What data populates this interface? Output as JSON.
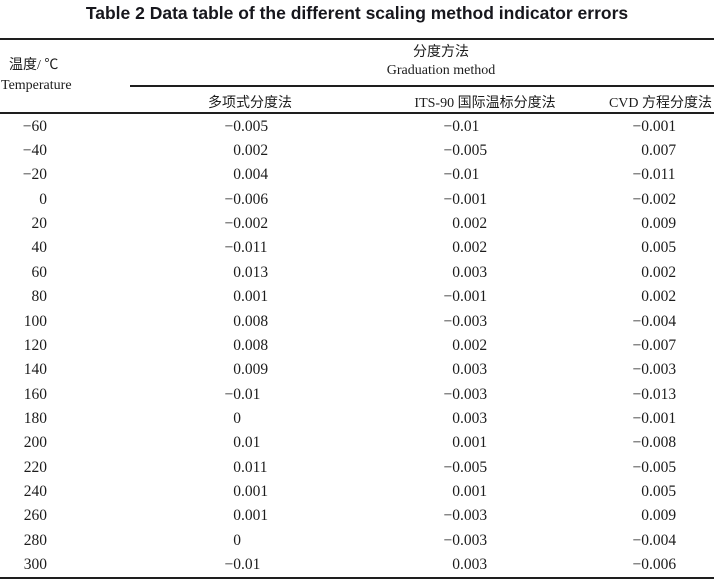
{
  "title": "Table 2 Data table of the different scaling method indicator errors",
  "table": {
    "col1_header": {
      "zh": "温度/ ℃",
      "en": "Temperature"
    },
    "group_header": {
      "zh": "分度方法",
      "en": "Graduation method"
    },
    "method_headers": {
      "poly": "多项式分度法",
      "its90": "ITS-90 国际温标分度法",
      "cvd": "CVD 方程分度法"
    },
    "rows": [
      {
        "temp": "−60",
        "poly": "−0.005",
        "its90": "−0.01",
        "cvd": "−0.001"
      },
      {
        "temp": "−40",
        "poly": "0.002",
        "its90": "−0.005",
        "cvd": "0.007"
      },
      {
        "temp": "−20",
        "poly": "0.004",
        "its90": "−0.01",
        "cvd": "−0.011"
      },
      {
        "temp": "0",
        "poly": "−0.006",
        "its90": "−0.001",
        "cvd": "−0.002"
      },
      {
        "temp": "20",
        "poly": "−0.002",
        "its90": "0.002",
        "cvd": "0.009"
      },
      {
        "temp": "40",
        "poly": "−0.011",
        "its90": "0.002",
        "cvd": "0.005"
      },
      {
        "temp": "60",
        "poly": "0.013",
        "its90": "0.003",
        "cvd": "0.002"
      },
      {
        "temp": "80",
        "poly": "0.001",
        "its90": "−0.001",
        "cvd": "0.002"
      },
      {
        "temp": "100",
        "poly": "0.008",
        "its90": "−0.003",
        "cvd": "−0.004"
      },
      {
        "temp": "120",
        "poly": "0.008",
        "its90": "0.002",
        "cvd": "−0.007"
      },
      {
        "temp": "140",
        "poly": "0.009",
        "its90": "0.003",
        "cvd": "−0.003"
      },
      {
        "temp": "160",
        "poly": "−0.01",
        "its90": "−0.003",
        "cvd": "−0.013"
      },
      {
        "temp": "180",
        "poly": "0",
        "its90": "0.003",
        "cvd": "−0.001"
      },
      {
        "temp": "200",
        "poly": "0.01",
        "its90": "0.001",
        "cvd": "−0.008"
      },
      {
        "temp": "220",
        "poly": "0.011",
        "its90": "−0.005",
        "cvd": "−0.005"
      },
      {
        "temp": "240",
        "poly": "0.001",
        "its90": "0.001",
        "cvd": "0.005"
      },
      {
        "temp": "260",
        "poly": "0.001",
        "its90": "−0.003",
        "cvd": "0.009"
      },
      {
        "temp": "280",
        "poly": "0",
        "its90": "−0.003",
        "cvd": "−0.004"
      },
      {
        "temp": "300",
        "poly": "−0.01",
        "its90": "0.003",
        "cvd": "−0.006"
      }
    ]
  },
  "colors": {
    "background": "#ffffff",
    "text": "#1c1c1c",
    "rule": "#1e1e1e"
  }
}
